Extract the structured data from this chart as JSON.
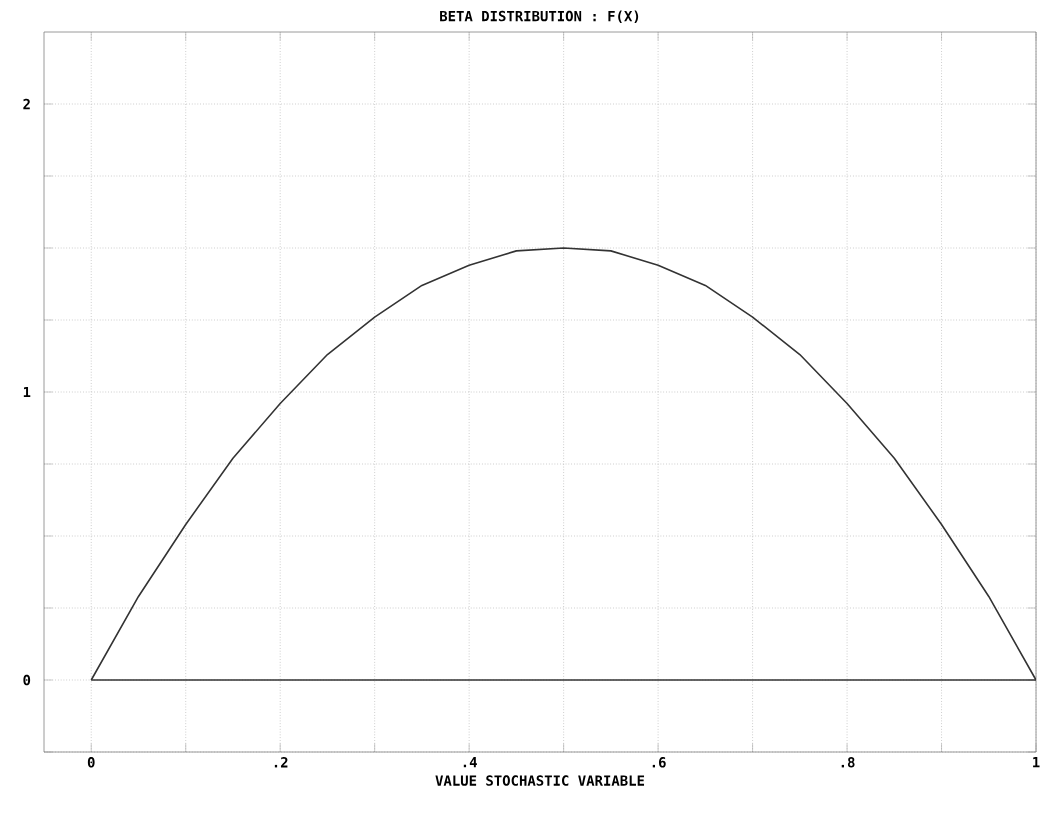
{
  "chart_data": {
    "type": "line",
    "title": "BETA DISTRIBUTION : F(X)",
    "xlabel": "VALUE STOCHASTIC VARIABLE",
    "x": [
      0,
      0.05,
      0.1,
      0.15,
      0.2,
      0.25,
      0.3,
      0.35,
      0.4,
      0.45,
      0.5,
      0.55,
      0.6,
      0.65,
      0.7,
      0.75,
      0.8,
      0.85,
      0.9,
      0.95,
      1
    ],
    "series": [
      {
        "color": "#333333",
        "values": [
          0,
          0.29,
          0.54,
          0.77,
          0.96,
          1.13,
          1.26,
          1.37,
          1.44,
          1.49,
          1.5,
          1.49,
          1.44,
          1.37,
          1.26,
          1.13,
          0.96,
          0.77,
          0.54,
          0.29,
          0
        ]
      }
    ],
    "xlim": [
      -0.05,
      1
    ],
    "ylim": [
      -0.25,
      2.25
    ],
    "xticks": [
      0,
      {
        "value": 0.1,
        "label": null
      },
      {
        "value": 0.2,
        "label": ".2"
      },
      {
        "value": 0.3,
        "label": null
      },
      {
        "value": 0.4,
        "label": ".4"
      },
      {
        "value": 0.5,
        "label": null
      },
      {
        "value": 0.6,
        "label": ".6"
      },
      {
        "value": 0.7,
        "label": null
      },
      {
        "value": 0.8,
        "label": ".8"
      },
      {
        "value": 0.9,
        "label": null
      },
      1
    ],
    "yticks": [
      {
        "value": -0.25,
        "label": null
      },
      0,
      {
        "value": 0.25,
        "label": null
      },
      {
        "value": 0.5,
        "label": null
      },
      {
        "value": 0.75,
        "label": null
      },
      1,
      {
        "value": 1.25,
        "label": null
      },
      {
        "value": 1.5,
        "label": null
      },
      {
        "value": 1.75,
        "label": null
      },
      2
    ],
    "ref_lines": [
      {
        "axis": "y",
        "value": 0,
        "color": "#333333"
      }
    ],
    "grid": true,
    "marker": "none",
    "line_style": "solid"
  }
}
